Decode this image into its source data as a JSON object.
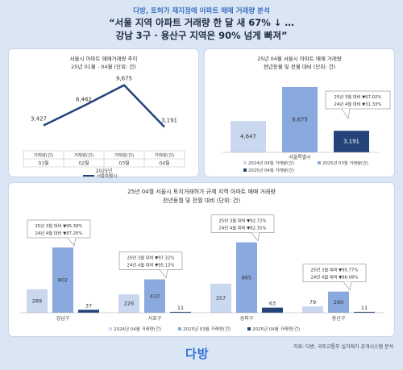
{
  "header": {
    "subtitle": "다방, 토허가 재지정에 아파트 매매 거래량 분석",
    "headline_1": "“서울 지역 아파트 거래량 한 달 새 67% ↓ …",
    "headline_2": "강남 3구 · 용산구 지역은 90% 넘게 빠져”"
  },
  "chart_data": [
    {
      "type": "line",
      "title": "서울시 아파트 매매거래량 추이",
      "subtitle": "25년 01월 - 04월 (단위: 건)",
      "categories": [
        "01월",
        "02월",
        "03월",
        "04월"
      ],
      "category_header": "거래량(건)",
      "year_label": "2025년",
      "series": [
        {
          "name": "서울특별시",
          "values": [
            3427,
            6462,
            9675,
            3191
          ]
        }
      ],
      "value_labels": [
        "3,427",
        "6,462",
        "9,675",
        "3,191"
      ],
      "ylim": [
        0,
        11000
      ]
    },
    {
      "type": "bar",
      "title": "25년 04월 서울시 아파트 매매 거래량",
      "subtitle": "전년동월 및 전월 대비 (단위: 건)",
      "categories": [
        "서울특별시"
      ],
      "series": [
        {
          "name": "2024년 04월 거래량(건)",
          "values": [
            4647
          ],
          "label": "4,647"
        },
        {
          "name": "2025년 03월 거래량(건)",
          "values": [
            9675
          ],
          "label": "9,675"
        },
        {
          "name": "2025년 04월 거래량(건)",
          "values": [
            3191
          ],
          "label": "3,191"
        }
      ],
      "callout": [
        "25년 3월 대비 ▼67.02%",
        "24년 4월 대비 ▼31.33%"
      ],
      "ylim": [
        0,
        10500
      ]
    },
    {
      "type": "bar",
      "title": "25년 04월 서울시 토지거래허가 규제 지역 아파트 매매 거래량",
      "subtitle": "전년동월 및 전월 대비 (단위: 건)",
      "categories": [
        "강남구",
        "서초구",
        "송파구",
        "용산구"
      ],
      "series": [
        {
          "name": "2024년 04월 거래량(건)",
          "values": [
            289,
            226,
            357,
            79
          ]
        },
        {
          "name": "2025년 03월 거래량(건)",
          "values": [
            802,
            410,
            865,
            260
          ]
        },
        {
          "name": "2025년 04월 거래량(건)",
          "values": [
            37,
            11,
            63,
            11
          ]
        }
      ],
      "callouts": [
        [
          "25년 3월 대비 ▼95.39%",
          "24년 4월 대비 ▼87.20%"
        ],
        [
          "25년 3월 대비 ▼97.32%",
          "24년 4월 대비 ▼95.13%"
        ],
        [
          "25년 3월 대비 ▼92.72%",
          "24년 4월 대비 ▼82.35%"
        ],
        [
          "25년 3월 대비 ▼95.77%",
          "24년 4월 대비 ▼86.08%"
        ]
      ],
      "ylim": [
        0,
        1000
      ]
    }
  ],
  "footer": {
    "source": "자료: 다방, 국토교통부 실거래가 공개시스템 분석",
    "logo": "다방"
  },
  "colors": {
    "bar_2024": "#c9d7ef",
    "bar_2025_03": "#8aa9de",
    "bar_2025_04": "#23437a",
    "line": "#23437a",
    "accent": "#3d6fc2"
  }
}
